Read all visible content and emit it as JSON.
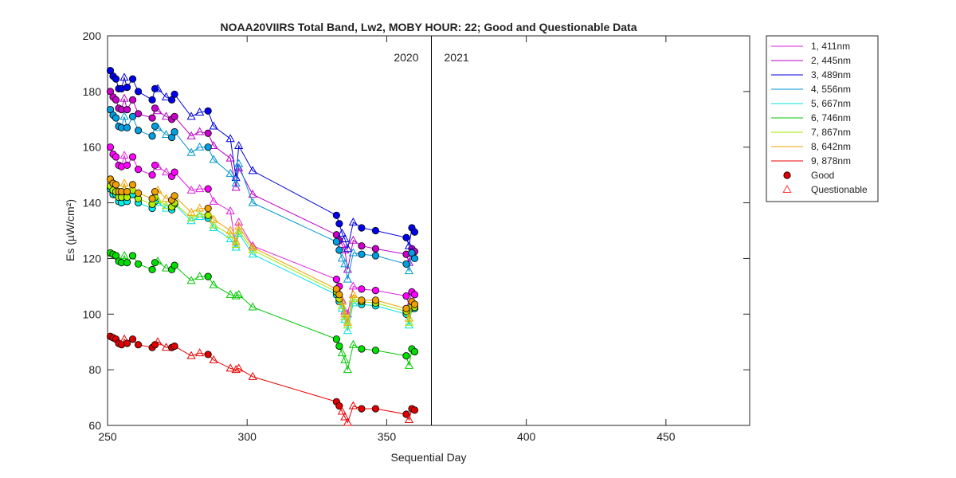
{
  "chart_data": {
    "type": "line",
    "title": "NOAA20VIIRS Total Band,  Lw2, MOBY HOUR: 22;  Good and Questionable Data",
    "xlabel": "Sequential Day",
    "ylabel": "Es (µW/cm²)",
    "xlim": [
      250,
      480
    ],
    "ylim": [
      60,
      200
    ],
    "xticks": [
      250,
      300,
      350,
      400,
      450
    ],
    "yticks": [
      60,
      80,
      100,
      120,
      140,
      160,
      180,
      200
    ],
    "grid": false,
    "legend_position": "outside-top-right",
    "year_divider_x": 366,
    "year_labels": [
      "2020",
      "2021"
    ],
    "markers": {
      "good_label": "Good",
      "questionable_label": "Questionable",
      "good_color": "#dd0000",
      "questionable_color": "#ff3333"
    },
    "x": [
      251,
      252,
      253,
      254,
      255,
      256,
      257,
      259,
      261,
      266,
      267,
      268,
      271,
      273,
      274,
      280,
      283,
      286,
      288,
      294,
      296,
      297,
      302,
      332,
      333,
      334,
      335,
      336,
      338,
      341,
      346,
      357,
      358,
      359,
      360
    ],
    "good_mask": [
      1,
      1,
      1,
      1,
      1,
      0,
      1,
      1,
      1,
      1,
      1,
      0,
      0,
      1,
      1,
      0,
      0,
      1,
      0,
      0,
      0,
      0,
      0,
      1,
      1,
      0,
      0,
      0,
      0,
      1,
      1,
      1,
      0,
      1,
      1
    ],
    "series": [
      {
        "name": "1, 411nm",
        "color": "#e020e0",
        "fill": "#ff00ff",
        "values": [
          160,
          157.5,
          156.5,
          153.5,
          153,
          157,
          153.5,
          156.5,
          152,
          150,
          153.5,
          153,
          151,
          149.5,
          151,
          144.5,
          145,
          145,
          140.5,
          137,
          124,
          133,
          124.5,
          112.5,
          110,
          105,
          101,
          100,
          110,
          109,
          108.5,
          106.5,
          103,
          108,
          107
        ]
      },
      {
        "name": "2, 445nm",
        "color": "#b800c8",
        "fill": "#c800c8",
        "values": [
          180,
          178,
          177,
          174,
          173.5,
          177.5,
          173.5,
          177,
          172,
          170.5,
          174,
          173,
          171,
          170,
          171,
          164,
          165.5,
          165,
          160.5,
          156,
          145.5,
          152.5,
          143,
          128.5,
          126.5,
          125,
          123,
          116,
          126.5,
          124.5,
          123.5,
          121.5,
          118.5,
          123.5,
          122.5
        ]
      },
      {
        "name": "3, 489nm",
        "color": "#0000dd",
        "fill": "#0000ee",
        "values": [
          187.5,
          185.5,
          184.5,
          181,
          181,
          185,
          181.5,
          184.5,
          180,
          177,
          181,
          181,
          178,
          177,
          179,
          171,
          172.5,
          173,
          167.5,
          163,
          149,
          160.5,
          151.5,
          135.5,
          132.5,
          129,
          127,
          123.5,
          133,
          131,
          130,
          127.5,
          124.5,
          131,
          129.5
        ]
      },
      {
        "name": "4, 556nm",
        "color": "#0097d0",
        "fill": "#00a0e0",
        "values": [
          173.5,
          171.5,
          170.5,
          167.5,
          167,
          171,
          167,
          171,
          166,
          164,
          167.5,
          167,
          164.5,
          163.5,
          165.5,
          158,
          160,
          160,
          155.5,
          150.5,
          147,
          154,
          140,
          126,
          123,
          120,
          118,
          112.5,
          122,
          121.5,
          121,
          118,
          115.5,
          122,
          120
        ]
      },
      {
        "name": "5, 667nm",
        "color": "#00e0e0",
        "fill": "#00eeee",
        "values": [
          145,
          143,
          143,
          140.5,
          140,
          143,
          140.5,
          143,
          140,
          138,
          140.5,
          140,
          138,
          137.5,
          139.5,
          133.5,
          135,
          134.5,
          131,
          127,
          124,
          129,
          121.5,
          107,
          104.5,
          102,
          98,
          94,
          104,
          103.5,
          103,
          100,
          96,
          102,
          102
        ]
      },
      {
        "name": "6, 746nm",
        "color": "#00c800",
        "fill": "#00e000",
        "values": [
          122,
          121.5,
          121,
          119,
          118.5,
          121,
          118.5,
          121,
          118,
          116,
          118.5,
          119,
          116.5,
          116,
          117.5,
          112,
          113.5,
          113.5,
          110.5,
          107,
          106.5,
          107,
          102.5,
          91,
          88.5,
          86,
          83.5,
          80,
          89,
          87.5,
          87,
          85,
          81.5,
          87.5,
          86.5
        ]
      },
      {
        "name": "7, 867nm",
        "color": "#a0e800",
        "fill": "#b0f000",
        "values": [
          146,
          144.5,
          144,
          142,
          142,
          144.5,
          142,
          144.5,
          141.5,
          139.5,
          142,
          141,
          139,
          138.5,
          140,
          134.5,
          136,
          135.5,
          132,
          128.5,
          125,
          130,
          123,
          108,
          105.5,
          103,
          99,
          96,
          105.5,
          104.5,
          104,
          101,
          97,
          103,
          102.5
        ]
      },
      {
        "name": "8, 642nm",
        "color": "#f0a000",
        "fill": "#f0a000",
        "values": [
          148.5,
          147,
          146.5,
          144,
          144,
          147,
          144,
          146.5,
          143.5,
          141.5,
          144,
          144.5,
          141.5,
          141,
          142.5,
          136.5,
          138,
          138,
          134,
          130,
          126,
          131.5,
          124,
          109,
          107,
          104.5,
          100,
          97,
          107,
          105,
          105,
          102,
          98.5,
          104.5,
          103.5
        ]
      },
      {
        "name": "9, 878nm",
        "color": "#e80000",
        "fill": "#dd0000",
        "values": [
          92,
          91.5,
          91,
          89.5,
          89,
          91,
          89.5,
          91,
          89,
          88,
          89,
          90,
          88,
          88,
          88.5,
          85,
          86,
          85.5,
          83.5,
          80.5,
          80,
          80.5,
          77.5,
          68.5,
          67,
          65,
          63,
          61,
          67,
          66,
          66,
          64,
          62,
          66,
          65.5
        ]
      }
    ]
  }
}
